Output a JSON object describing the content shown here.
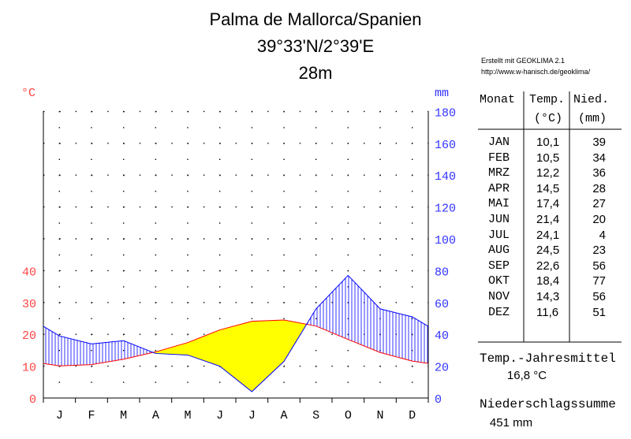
{
  "chart_data": {
    "type": "climate-diagram",
    "title": "Palma de Mallorca/Spanien",
    "coordinates": "39°33'N/2°39'E",
    "elevation": "28m",
    "temp_unit": "°C",
    "precip_unit": "mm",
    "months": [
      "J",
      "F",
      "M",
      "A",
      "M",
      "J",
      "J",
      "A",
      "S",
      "O",
      "N",
      "D"
    ],
    "temperature_c": [
      10.1,
      10.5,
      12.2,
      14.5,
      17.4,
      21.4,
      24.1,
      24.5,
      22.6,
      18.4,
      14.3,
      11.6
    ],
    "precipitation_mm": [
      39,
      34,
      36,
      28,
      27,
      20,
      4,
      23,
      56,
      77,
      56,
      51
    ],
    "temp_ticks": [
      0,
      10,
      20,
      30,
      40
    ],
    "precip_ticks": [
      0,
      20,
      40,
      60,
      80,
      100,
      120,
      140,
      160,
      180
    ],
    "ylim_temp": [
      0,
      40
    ],
    "ylim_precip": [
      0,
      180
    ],
    "colors": {
      "temperature": "#ff0000",
      "precipitation": "#0000ff",
      "dry": "#ffff00",
      "humid": "#0000ff",
      "temp_axis": "#ff4444",
      "precip_axis": "#3333ff"
    }
  },
  "credit": {
    "line1": "Erstellt mit GEOKLIMA 2.1",
    "line2": "http://www.w-hanisch.de/geoklima/"
  },
  "table": {
    "headers": {
      "month": "Monat",
      "temp": "Temp.",
      "temp_unit": "(°C)",
      "precip": "Nied.",
      "precip_unit": "(mm)"
    },
    "rows": [
      {
        "month": "JAN",
        "temp": "10,1",
        "precip": "39"
      },
      {
        "month": "FEB",
        "temp": "10,5",
        "precip": "34"
      },
      {
        "month": "MRZ",
        "temp": "12,2",
        "precip": "36"
      },
      {
        "month": "APR",
        "temp": "14,5",
        "precip": "28"
      },
      {
        "month": "MAI",
        "temp": "17,4",
        "precip": "27"
      },
      {
        "month": "JUN",
        "temp": "21,4",
        "precip": "20"
      },
      {
        "month": "JUL",
        "temp": "24,1",
        "precip": "4"
      },
      {
        "month": "AUG",
        "temp": "24,5",
        "precip": "23"
      },
      {
        "month": "SEP",
        "temp": "22,6",
        "precip": "56"
      },
      {
        "month": "OKT",
        "temp": "18,4",
        "precip": "77"
      },
      {
        "month": "NOV",
        "temp": "14,3",
        "precip": "56"
      },
      {
        "month": "DEZ",
        "temp": "11,6",
        "precip": "51"
      }
    ]
  },
  "summary": {
    "temp_label": "Temp.-Jahresmittel",
    "temp_value": "16,8 °C",
    "precip_label": "Niederschlagssumme",
    "precip_value": "451 mm"
  }
}
